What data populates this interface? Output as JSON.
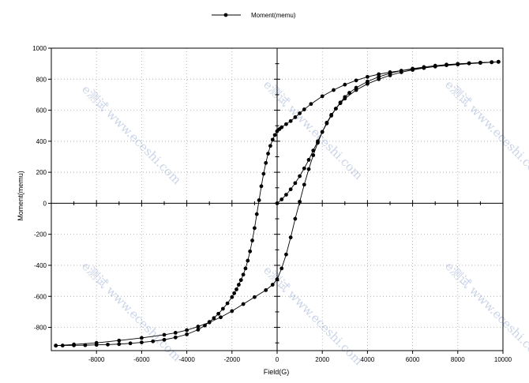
{
  "chart_data": {
    "type": "scatter",
    "title": "",
    "xlabel": "Field(G)",
    "ylabel": "Moment(memu)",
    "xlim": [
      -10000,
      10000
    ],
    "ylim": [
      -950,
      1000
    ],
    "xticks": [
      -8000,
      -6000,
      -4000,
      -2000,
      0,
      2000,
      4000,
      6000,
      8000,
      10000
    ],
    "yticks": [
      -800,
      -600,
      -400,
      -200,
      0,
      200,
      400,
      600,
      800,
      1000
    ],
    "grid": true,
    "legend": {
      "position": "top-center",
      "entries": [
        "Moment(memu)"
      ]
    },
    "watermark": "e测试 www.eceshi.com",
    "series": [
      {
        "name": "Moment(memu)",
        "color": "#000000",
        "marker": "circle",
        "branches": [
          {
            "x": [
              0,
              200,
              400,
              600,
              800,
              1000,
              1200,
              1400,
              1600,
              1800,
              2000,
              2200,
              2400,
              2600,
              2800,
              3000,
              3200,
              3500,
              4000,
              4500,
              5000,
              5500,
              6000,
              6500,
              7000,
              7500,
              8000,
              8500,
              9000,
              9500,
              9800
            ],
            "y": [
              0,
              25,
              55,
              90,
              130,
              175,
              225,
              280,
              340,
              400,
              460,
              515,
              565,
              610,
              650,
              685,
              712,
              745,
              785,
              815,
              838,
              855,
              868,
              878,
              887,
              894,
              899,
              903,
              907,
              910,
              912
            ]
          },
          {
            "x": [
              9800,
              9000,
              8000,
              7000,
              6000,
              5000,
              4500,
              4000,
              3500,
              3000,
              2500,
              2000,
              1500,
              1200,
              1000,
              800,
              600,
              400,
              200,
              100,
              0,
              -100,
              -200,
              -300,
              -400,
              -500,
              -600,
              -700,
              -800,
              -900,
              -1000,
              -1100,
              -1200,
              -1300,
              -1400,
              -1500,
              -1600,
              -1700,
              -1800,
              -1900,
              -2000,
              -2200,
              -2400,
              -2600,
              -2800,
              -3000,
              -3200,
              -3500,
              -4000,
              -4500,
              -5000,
              -5500,
              -6000,
              -6500,
              -7000,
              -7500,
              -8000,
              -8500,
              -9000,
              -9500,
              -9800
            ],
            "y": [
              912,
              905,
              895,
              882,
              865,
              845,
              832,
              815,
              792,
              765,
              730,
              690,
              640,
              605,
              580,
              555,
              530,
              510,
              490,
              478,
              465,
              440,
              410,
              370,
              320,
              260,
              190,
              110,
              20,
              -70,
              -160,
              -240,
              -310,
              -370,
              -420,
              -460,
              -495,
              -525,
              -555,
              -580,
              -605,
              -645,
              -680,
              -712,
              -740,
              -765,
              -788,
              -815,
              -845,
              -865,
              -880,
              -890,
              -897,
              -903,
              -908,
              -911,
              -913,
              -915,
              -916,
              -917,
              -918
            ]
          },
          {
            "x": [
              -9800,
              -9000,
              -8000,
              -7000,
              -6000,
              -5000,
              -4500,
              -4000,
              -3500,
              -3000,
              -2500,
              -2000,
              -1500,
              -1000,
              -500,
              -200,
              0,
              200,
              400,
              600,
              800,
              1000,
              1200,
              1400,
              1600,
              1800,
              2000,
              2200,
              2400,
              2600,
              2800,
              3000,
              3500,
              4000,
              4500,
              5000,
              5500,
              6000,
              6500,
              7000,
              7500,
              8000,
              8500,
              9000,
              9500,
              9800
            ],
            "y": [
              -918,
              -910,
              -900,
              -885,
              -868,
              -848,
              -835,
              -818,
              -795,
              -768,
              -735,
              -695,
              -650,
              -605,
              -560,
              -525,
              -490,
              -420,
              -330,
              -220,
              -100,
              10,
              120,
              220,
              310,
              390,
              460,
              520,
              570,
              610,
              645,
              675,
              730,
              770,
              800,
              825,
              845,
              860,
              872,
              882,
              890,
              897,
              902,
              906,
              909,
              912
            ]
          }
        ]
      }
    ]
  }
}
